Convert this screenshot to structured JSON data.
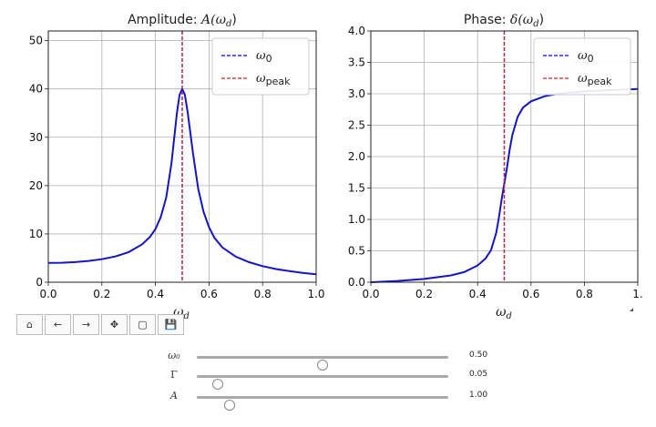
{
  "chart_data": [
    {
      "type": "line",
      "title": "Amplitude: A(ω_d)",
      "xlabel": "ω_d",
      "ylabel": "",
      "xlim": [
        0.0,
        1.0
      ],
      "ylim": [
        0,
        52
      ],
      "xticks": [
        "0.0",
        "0.2",
        "0.4",
        "0.6",
        "0.8",
        "1.0"
      ],
      "yticks": [
        "0",
        "10",
        "20",
        "30",
        "40",
        "50"
      ],
      "grid": true,
      "legend": {
        "placement": "top-right",
        "entries": [
          "ω0",
          "ωpeak"
        ]
      },
      "series": [
        {
          "name": "A(ω_d)",
          "color": "#1414c8",
          "x": [
            0.0,
            0.05,
            0.1,
            0.15,
            0.2,
            0.25,
            0.3,
            0.35,
            0.38,
            0.4,
            0.42,
            0.44,
            0.46,
            0.48,
            0.49,
            0.5,
            0.51,
            0.52,
            0.54,
            0.56,
            0.58,
            0.6,
            0.62,
            0.65,
            0.7,
            0.75,
            0.8,
            0.85,
            0.9,
            0.95,
            1.0
          ],
          "y": [
            4.0,
            4.04,
            4.17,
            4.41,
            4.76,
            5.33,
            6.24,
            7.82,
            9.4,
            11.0,
            13.5,
            17.5,
            24.6,
            34.9,
            38.8,
            40.0,
            38.8,
            35.3,
            26.7,
            19.3,
            14.5,
            11.4,
            9.2,
            7.2,
            5.3,
            4.15,
            3.33,
            2.74,
            2.29,
            1.93,
            1.66
          ]
        },
        {
          "name": "ω0",
          "type": "vline",
          "x": 0.5,
          "color": "#0000ff",
          "dash": "dashed"
        },
        {
          "name": "ωpeak",
          "type": "vline",
          "x": 0.5,
          "color": "#d62728",
          "dash": "dashed"
        }
      ]
    },
    {
      "type": "line",
      "title": "Phase: δ(ω_d)",
      "xlabel": "ω_d",
      "ylabel": "",
      "xlim": [
        0.0,
        1.0
      ],
      "ylim": [
        0.0,
        4.0
      ],
      "xticks": [
        "0.0",
        "0.2",
        "0.4",
        "0.6",
        "0.8",
        "1."
      ],
      "yticks": [
        "0.0",
        "0.5",
        "1.0",
        "1.5",
        "2.0",
        "2.5",
        "3.0",
        "3.5",
        "4.0"
      ],
      "grid": true,
      "legend": {
        "placement": "top-right",
        "entries": [
          "ω0",
          "ωpeak"
        ]
      },
      "series": [
        {
          "name": "δ(ω_d)",
          "color": "#1414c8",
          "x": [
            0.0,
            0.1,
            0.2,
            0.3,
            0.35,
            0.4,
            0.43,
            0.45,
            0.47,
            0.48,
            0.49,
            0.5,
            0.51,
            0.52,
            0.53,
            0.55,
            0.57,
            0.6,
            0.65,
            0.7,
            0.8,
            0.9,
            1.0
          ],
          "y": [
            0.0,
            0.021,
            0.052,
            0.109,
            0.163,
            0.266,
            0.38,
            0.51,
            0.79,
            1.03,
            1.32,
            1.571,
            1.82,
            2.11,
            2.34,
            2.63,
            2.78,
            2.88,
            2.96,
            3.0,
            3.04,
            3.06,
            3.075
          ]
        },
        {
          "name": "ω0",
          "type": "vline",
          "x": 0.5,
          "color": "#0000ff",
          "dash": "dashed"
        },
        {
          "name": "ωpeak",
          "type": "vline",
          "x": 0.5,
          "color": "#d62728",
          "dash": "dashed"
        }
      ]
    }
  ],
  "titles": {
    "amplitude_prefix": "Amplitude: ",
    "amplitude_func": "A(ω",
    "amplitude_sub": "d",
    "amplitude_close": ")",
    "phase_prefix": "Phase: ",
    "phase_func": "δ(ω",
    "phase_sub": "d",
    "phase_close": ")"
  },
  "axis_labels": {
    "x_main": "ω",
    "x_sub": "d"
  },
  "legend": {
    "omega": "ω",
    "sub_0": "0",
    "sub_peak": "peak"
  },
  "toolbar": [
    {
      "icon": "home-icon",
      "glyph": "⌂"
    },
    {
      "icon": "back-icon",
      "glyph": "←"
    },
    {
      "icon": "forward-icon",
      "glyph": "→"
    },
    {
      "icon": "pan-icon",
      "glyph": "✥"
    },
    {
      "icon": "zoom-rect-icon",
      "glyph": "▢"
    },
    {
      "icon": "save-icon",
      "glyph": "💾"
    }
  ],
  "sliders": [
    {
      "label": "ω₀",
      "value": 0.5,
      "min": 0.0,
      "max": 1.0,
      "display": "0.50"
    },
    {
      "label": "Γ",
      "value": 0.05,
      "min": 0.0,
      "max": 1.0,
      "display": "0.05"
    },
    {
      "label": "A",
      "value": 1.0,
      "min": 0.0,
      "max": 10.0,
      "display": "1.00"
    }
  ]
}
